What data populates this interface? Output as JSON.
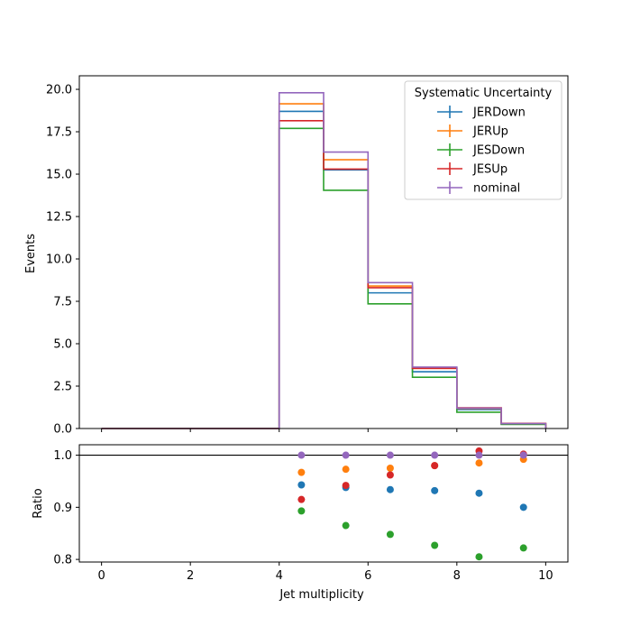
{
  "chart_data": [
    {
      "type": "line",
      "subtype": "step-histogram",
      "title": "",
      "xlabel": "",
      "ylabel": "Events",
      "xlim": [
        -0.5,
        10.5
      ],
      "ylim": [
        0,
        20.8
      ],
      "xticks": [
        0,
        2,
        4,
        6,
        8,
        10
      ],
      "yticks": [
        0.0,
        2.5,
        5.0,
        7.5,
        10.0,
        12.5,
        15.0,
        17.5,
        20.0
      ],
      "ytick_labels": [
        "0.0",
        "2.5",
        "5.0",
        "7.5",
        "10.0",
        "12.5",
        "15.0",
        "17.5",
        "20.0"
      ],
      "bin_edges": [
        0,
        4,
        5,
        6,
        7,
        8,
        9,
        10
      ],
      "grid": false,
      "legend": {
        "title": "Systematic Uncertainty",
        "placement": "top-right"
      },
      "series": [
        {
          "name": "JERDown",
          "color": "#1f77b4",
          "values": [
            0,
            18.7,
            15.25,
            8.0,
            3.35,
            1.12,
            0.27
          ]
        },
        {
          "name": "JERUp",
          "color": "#ff7f0e",
          "values": [
            0,
            19.15,
            15.85,
            8.4,
            3.55,
            1.18,
            0.29
          ]
        },
        {
          "name": "JESDown",
          "color": "#2ca02c",
          "values": [
            0,
            17.7,
            14.05,
            7.35,
            3.02,
            0.96,
            0.24
          ]
        },
        {
          "name": "JESUp",
          "color": "#d62728",
          "values": [
            0,
            18.15,
            15.3,
            8.3,
            3.55,
            1.22,
            0.3
          ]
        },
        {
          "name": "nominal",
          "color": "#9467bd",
          "values": [
            0,
            19.8,
            16.3,
            8.6,
            3.62,
            1.2,
            0.29
          ]
        }
      ]
    },
    {
      "type": "scatter",
      "title": "",
      "xlabel": "Jet multiplicity",
      "ylabel": "Ratio",
      "xlim": [
        -0.5,
        10.5
      ],
      "ylim": [
        0.795,
        1.02
      ],
      "xticks": [
        0,
        2,
        4,
        6,
        8,
        10
      ],
      "yticks": [
        0.8,
        0.9,
        1.0
      ],
      "ytick_labels": [
        "0.8",
        "0.9",
        "1.0"
      ],
      "reference_line": 1.0,
      "grid": false,
      "x": [
        4.5,
        5.5,
        6.5,
        7.5,
        8.5,
        9.5
      ],
      "series": [
        {
          "name": "JERDown",
          "color": "#1f77b4",
          "values": [
            0.943,
            0.938,
            0.934,
            0.932,
            0.927,
            0.9
          ]
        },
        {
          "name": "JERUp",
          "color": "#ff7f0e",
          "values": [
            0.967,
            0.973,
            0.975,
            0.98,
            0.985,
            0.992
          ]
        },
        {
          "name": "JESDown",
          "color": "#2ca02c",
          "values": [
            0.893,
            0.865,
            0.848,
            0.827,
            0.805,
            0.822
          ]
        },
        {
          "name": "JESUp",
          "color": "#d62728",
          "values": [
            0.915,
            0.942,
            0.962,
            0.98,
            1.008,
            1.002
          ]
        },
        {
          "name": "nominal",
          "color": "#9467bd",
          "values": [
            1.0,
            1.0,
            1.0,
            1.0,
            1.0,
            1.0
          ]
        }
      ]
    }
  ]
}
